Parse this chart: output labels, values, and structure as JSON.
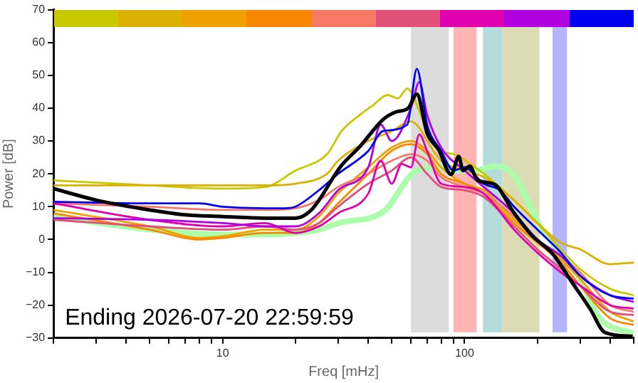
{
  "chart_data": {
    "type": "line",
    "xlabel": "Freq [mHz]",
    "ylabel": "Power [dB]",
    "log": "x",
    "grid": false,
    "legend": false,
    "xlim": [
      2,
      500
    ],
    "xticks": [
      {
        "value": 2,
        "label": null
      },
      {
        "value": 3,
        "label": null
      },
      {
        "value": 4,
        "label": null
      },
      {
        "value": 5,
        "label": null
      },
      {
        "value": 6,
        "label": null
      },
      {
        "value": 7,
        "label": null
      },
      {
        "value": 8,
        "label": null
      },
      {
        "value": 9,
        "label": null
      },
      10,
      {
        "value": 20,
        "label": null
      },
      {
        "value": 30,
        "label": null
      },
      {
        "value": 40,
        "label": null
      },
      {
        "value": 50,
        "label": null
      },
      {
        "value": 60,
        "label": null
      },
      {
        "value": 70,
        "label": null
      },
      {
        "value": 80,
        "label": null
      },
      {
        "value": 90,
        "label": null
      },
      100,
      {
        "value": 200,
        "label": null
      },
      {
        "value": 300,
        "label": null
      },
      {
        "value": 400,
        "label": null
      },
      {
        "value": 500,
        "label": null
      }
    ],
    "ylim": [
      -30,
      70
    ],
    "yticks": [
      {
        "value": -30,
        "label": "−30"
      },
      {
        "value": -20,
        "label": "−20"
      },
      {
        "value": -10,
        "label": "−10"
      },
      0,
      10,
      20,
      30,
      40,
      50,
      60,
      70
    ],
    "annotations": [
      "Ending 2026-07-20 22:59:59"
    ],
    "bands": [
      {
        "axis": "x",
        "from": 60,
        "to": 86,
        "color": "#dcdcdc"
      },
      {
        "axis": "x",
        "from": 90,
        "to": 112,
        "color": "#ffb4b4"
      },
      {
        "axis": "x",
        "from": 119,
        "to": 143,
        "color": "#b4dcdc"
      },
      {
        "axis": "x",
        "from": 143,
        "to": 204,
        "color": "#dcdcb4"
      },
      {
        "axis": "x",
        "from": 231,
        "to": 265,
        "color": "#b4b4ff"
      }
    ],
    "series": [
      {
        "color": "#c8c800",
        "x": [
          2,
          5,
          10,
          15,
          20,
          27,
          31,
          37,
          42,
          48,
          53,
          58,
          61,
          70,
          80,
          90,
          120,
          160,
          200,
          250,
          300,
          400,
          500
        ],
        "values": [
          18,
          16.5,
          15.5,
          16,
          21,
          26,
          33,
          38,
          41,
          44,
          43,
          46,
          44,
          33,
          27,
          26,
          20,
          12,
          5,
          -3,
          -9,
          -15,
          -17
        ]
      },
      {
        "color": "#dcb000",
        "x": [
          2,
          5,
          10,
          15,
          20,
          27,
          30,
          40,
          50,
          60,
          65,
          70,
          80,
          90,
          120,
          160,
          200,
          250,
          300,
          400,
          500
        ],
        "values": [
          16.5,
          16.5,
          16.5,
          16.5,
          17,
          20,
          24,
          30,
          33,
          36,
          34,
          30,
          24,
          22,
          19,
          12,
          5,
          -1,
          -3,
          -7.5,
          -7
        ]
      },
      {
        "color": "#f0a000",
        "x": [
          2,
          5,
          8,
          10,
          15,
          20,
          25,
          30,
          40,
          50,
          60,
          70,
          80,
          100,
          120,
          160,
          200,
          250,
          300,
          400,
          500
        ],
        "values": [
          9,
          4,
          0.5,
          1,
          3,
          3,
          7,
          14,
          22,
          28,
          30,
          27,
          22,
          17,
          15,
          6,
          0,
          -6,
          -12,
          -22,
          -25
        ]
      },
      {
        "color": "#f88800",
        "x": [
          2,
          5,
          8,
          10,
          15,
          20,
          25,
          30,
          40,
          50,
          60,
          70,
          80,
          100,
          120,
          160,
          200,
          250,
          300,
          400,
          500
        ],
        "values": [
          8,
          3,
          0,
          0.5,
          2,
          2,
          5,
          11,
          20,
          27,
          29,
          26,
          20,
          17,
          14,
          5,
          -1,
          -7,
          -14,
          -24,
          -26
        ]
      },
      {
        "color": "#f87868",
        "x": [
          2,
          5,
          10,
          15,
          20,
          25,
          30,
          40,
          50,
          60,
          70,
          80,
          100,
          120,
          160,
          200,
          250,
          300,
          400,
          500
        ],
        "values": [
          11,
          10,
          9,
          9,
          9.5,
          12,
          16,
          20,
          24,
          26,
          24,
          19,
          16,
          14,
          7,
          0,
          -5,
          -10,
          -20,
          -22
        ]
      },
      {
        "color": "#e05078",
        "x": [
          2,
          5,
          10,
          15,
          20,
          25,
          30,
          40,
          50,
          60,
          70,
          80,
          100,
          120,
          160,
          200,
          250,
          300,
          400,
          500
        ],
        "values": [
          6,
          4,
          3,
          4,
          3,
          5,
          10,
          17,
          21,
          25,
          20,
          16,
          15,
          13,
          4,
          -3,
          -9,
          -14,
          -22,
          -23
        ]
      },
      {
        "color": "#e000b0",
        "x": [
          2,
          5,
          10,
          15,
          20,
          25,
          30,
          40,
          45,
          50,
          55,
          60,
          65,
          70,
          80,
          100,
          120,
          160,
          200,
          250,
          300,
          400,
          500
        ],
        "values": [
          11,
          6,
          4,
          5,
          2,
          4,
          8,
          14,
          24,
          17,
          23,
          22,
          32,
          27,
          17,
          16,
          14,
          3,
          -4,
          -10,
          -14,
          -20,
          -21
        ]
      },
      {
        "color": "#b000e0",
        "x": [
          2,
          5,
          10,
          15,
          20,
          25,
          30,
          40,
          45,
          50,
          60,
          65,
          70,
          80,
          100,
          120,
          160,
          200,
          250,
          300,
          400,
          500
        ],
        "values": [
          6.5,
          6,
          5,
          4,
          4,
          8,
          15,
          22,
          35,
          30,
          40,
          48,
          38,
          28,
          21,
          16,
          8,
          0,
          -5,
          -11,
          -17,
          -19
        ]
      },
      {
        "color": "#0000f0",
        "x": [
          2,
          5,
          8,
          10,
          18,
          20,
          25,
          30,
          40,
          46,
          58,
          63.5,
          70,
          80,
          90,
          100,
          120,
          140,
          160,
          200,
          250,
          300,
          400,
          500
        ],
        "values": [
          11.5,
          11,
          11,
          10,
          9.5,
          10,
          15,
          20,
          27,
          33,
          35,
          52,
          35,
          27,
          21,
          22,
          17,
          15,
          10,
          3,
          -4,
          -11,
          -17,
          -18
        ]
      },
      {
        "color": "#aaffaa",
        "x": [
          2,
          5,
          10,
          15,
          20,
          25,
          30,
          46,
          63.5,
          80,
          92,
          110,
          133,
          159,
          209,
          250,
          300,
          363,
          500
        ],
        "values": [
          7,
          3,
          1.5,
          1.5,
          2,
          3,
          5,
          8.4,
          21,
          22,
          21,
          21,
          22.3,
          19.8,
          3,
          -4.3,
          -12,
          -24,
          -28.7
        ]
      },
      {
        "color": "#000000",
        "x": [
          2,
          3,
          5,
          7,
          10,
          15,
          20,
          23.4,
          30.8,
          36.8,
          46.3,
          51.8,
          58.5,
          63.5,
          70,
          78,
          88,
          94.6,
          98.5,
          105,
          113,
          133,
          159,
          190,
          231,
          276,
          330,
          380,
          495
        ],
        "values": [
          15.5,
          12,
          9,
          7.5,
          7,
          6.5,
          6.5,
          9.2,
          22.3,
          28.2,
          36.7,
          38.8,
          40,
          44.3,
          32.4,
          27.4,
          19.8,
          25.3,
          21,
          22.3,
          18.1,
          16.8,
          8.4,
          1.2,
          -4.3,
          -12.7,
          -21.1,
          -28.3,
          -29.5
        ]
      }
    ]
  }
}
